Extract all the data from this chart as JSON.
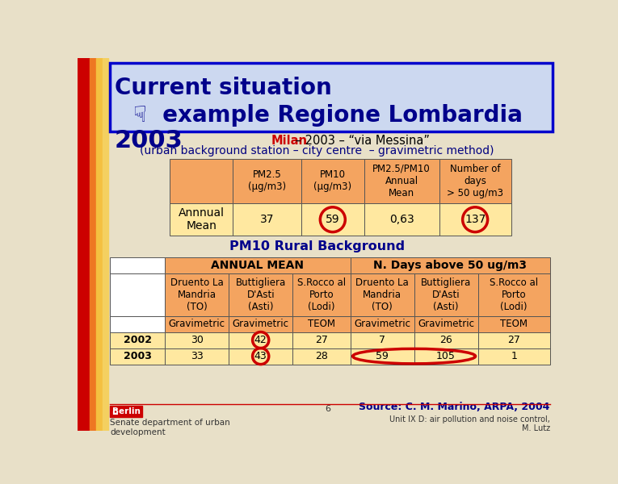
{
  "slide_bg": "#e8e0c8",
  "title_line1": "Current situation",
  "title_line2": "☟  example Regione Lombardia",
  "title_color": "#00008B",
  "title_box_border": "#0000cc",
  "title_box_bg": "#ccd8f0",
  "year_label": "2003",
  "year_color": "#00008B",
  "milan_text": "Milan",
  "milan_color": "#cc0000",
  "subtitle1_rest": " – 2003 – “via Messina”",
  "subtitle1_color": "#000000",
  "subtitle2": "(urban background station – city centre  – gravimetric method)",
  "subtitle2_color": "#000080",
  "table1_header_bg": "#f4a460",
  "table1_data_bg": "#ffe8a0",
  "table1_header_row": [
    "",
    "PM2.5\n(µg/m3)",
    "PM10\n(µg/m3)",
    "PM2.5/PM10\nAnnual\nMean",
    "Number of\ndays\n> 50 ug/m3"
  ],
  "table1_data_row": [
    "Annnual\nMean",
    "37",
    "59",
    "0,63",
    "137"
  ],
  "circle_color": "#cc0000",
  "pm10_rural_label": "PM10 Rural Background",
  "pm10_rural_color": "#00008B",
  "table2_header_bg": "#f4a460",
  "table2_data_bg": "#ffe8a0",
  "table2_sub_headers": [
    "",
    "Druento La\nMandria\n(TO)",
    "Buttigliera\nD'Asti\n(Asti)",
    "S.Rocco al\nPorto\n(Lodi)",
    "Druento La\nMandria\n(TO)",
    "Buttigliera\nD'Asti\n(Asti)",
    "S.Rocco al\nPorto\n(Lodi)"
  ],
  "table2_method_row": [
    "",
    "Gravimetric",
    "Gravimetric",
    "TEOM",
    "Gravimetric",
    "Gravimetric",
    "TEOM"
  ],
  "table2_2002": [
    "2002",
    "30",
    "42",
    "27",
    "7",
    "26",
    "27"
  ],
  "table2_2003": [
    "2003",
    "33",
    "43",
    "28",
    "59",
    "105",
    "1"
  ],
  "source_text": "Source: C. M. Marino, ARPA, 2004",
  "source_color": "#00008B",
  "footer_left": "Senate department of urban\ndevelopment",
  "footer_center": "6",
  "footer_right": "Unit IX D: air pollution and noise control,\nM. Lutz",
  "footer_color": "#333333",
  "stripe_colors": [
    "#cc0000",
    "#cc0000",
    "#ee7722",
    "#f4c040",
    "#f4d060"
  ]
}
